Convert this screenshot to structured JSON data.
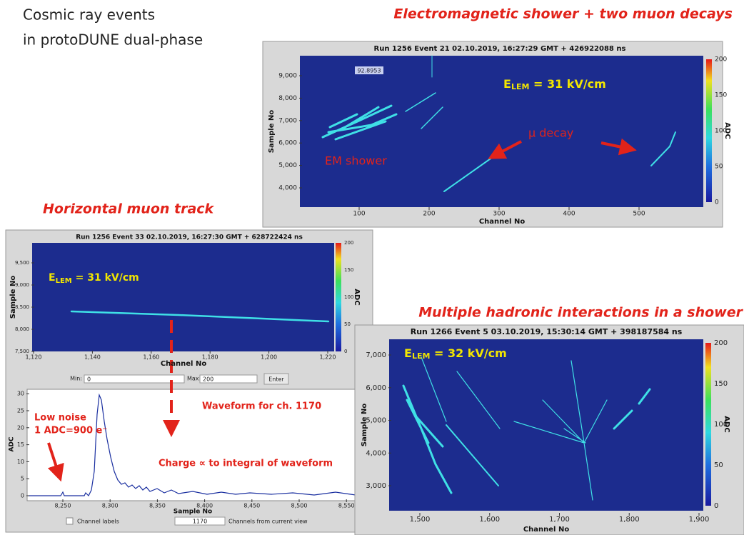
{
  "header": {
    "line1": "Cosmic ray events",
    "line2": "in protoDUNE dual-phase"
  },
  "panels": [
    {
      "heading": "Electromagnetic shower + two muon decays",
      "plot_title": "Run 1256 Event 21 02.10.2019, 16:27:29 GMT + 426922088 ns",
      "xticks": [
        "100",
        "200",
        "300",
        "400",
        "500"
      ],
      "yticks": [
        "4,000",
        "5,000",
        "6,000",
        "7,000",
        "8,000",
        "9,000"
      ],
      "x_label": "Channel No",
      "y_label": "Sample No",
      "colorbar_ticks": [
        "0",
        "50",
        "100",
        "150",
        "200"
      ],
      "colorbar_label": "ADC",
      "field": {
        "symbol": "E",
        "subscript": "LEM",
        "value": " = 31 kV/cm"
      },
      "annotations": [
        "µ decay",
        "EM shower",
        "92.8953"
      ]
    },
    {
      "heading": "Horizontal muon track",
      "plot_title": "Run 1256 Event 33 02.10.2019, 16:27:30 GMT + 628722424 ns",
      "xticks": [
        "1,120",
        "1,140",
        "1,160",
        "1,180",
        "1,200",
        "1,220"
      ],
      "yticks": [
        "7,500",
        "8,000",
        "8,500",
        "9,000",
        "9,500"
      ],
      "x_label": "Channel No",
      "y_label": "Sample No",
      "colorbar_ticks": [
        "0",
        "50",
        "100",
        "150",
        "200"
      ],
      "colorbar_label": "ADC",
      "field": {
        "symbol": "E",
        "subscript": "LEM",
        "value": " = 31 kV/cm"
      },
      "controls": {
        "min_label": "Min:",
        "min": "0",
        "max_label": "Max:",
        "max": "200",
        "button": "Enter"
      },
      "waveform": {
        "yticks": [
          "0",
          "5",
          "10",
          "15",
          "20",
          "25",
          "30"
        ],
        "xticks": [
          "8,250",
          "8,300",
          "8,350",
          "8,400",
          "8,450",
          "8,500",
          "8,550"
        ],
        "x_label": "Sample No",
        "y_label": "ADC",
        "notes": [
          "Low noise",
          "1 ADC=900 e⁻",
          "Waveform for ch. 1170",
          "Charge ∝ to integral of waveform"
        ]
      },
      "footer": {
        "checkbox": "Channel labels",
        "channel": "1170",
        "hint": "Channels from current view"
      }
    },
    {
      "heading": "Multiple hadronic interactions in a shower",
      "plot_title": "Run 1266 Event 5 03.10.2019, 15:30:14 GMT + 398187584 ns",
      "xticks": [
        "1,500",
        "1,600",
        "1,700",
        "1,800",
        "1,900"
      ],
      "yticks": [
        "3,000",
        "4,000",
        "5,000",
        "6,000",
        "7,000"
      ],
      "x_label": "Channel No",
      "y_label": "Sample No",
      "colorbar_ticks": [
        "0",
        "50",
        "100",
        "150",
        "200"
      ],
      "colorbar_label": "ADC",
      "field": {
        "symbol": "E",
        "subscript": "LEM",
        "value": " = 32 kV/cm"
      }
    }
  ]
}
